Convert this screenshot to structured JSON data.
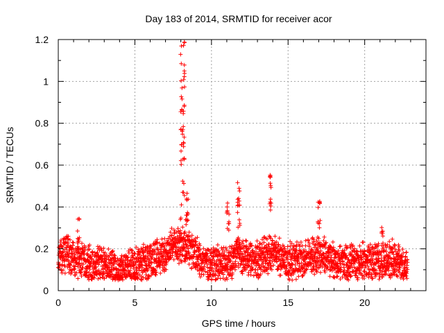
{
  "chart_data": {
    "type": "scatter",
    "title": "Day 183 of 2014, SRMTID for receiver acor",
    "xlabel": "GPS time / hours",
    "ylabel": "SRMTID / TECUs",
    "xlim": [
      0,
      24
    ],
    "ylim": [
      0,
      1.2
    ],
    "xticks": [
      0,
      5,
      10,
      15,
      20
    ],
    "yticks": [
      0,
      0.2,
      0.4,
      0.6,
      0.8,
      1,
      1.2
    ],
    "xtick_labels": [
      "0",
      "5",
      "10",
      "15",
      "20"
    ],
    "ytick_labels": [
      "0",
      "0.2",
      "0.4",
      "0.6",
      "0.8",
      "1",
      "1.2"
    ],
    "grid": true,
    "marker": "plus",
    "series_color": "#ff0000",
    "series": [
      {
        "name": "SRMTID",
        "x_range": [
          0,
          22.8
        ],
        "sample_every_hours": 0.00833,
        "baseline_profile": [
          [
            0.0,
            0.15
          ],
          [
            0.5,
            0.18
          ],
          [
            1.0,
            0.16
          ],
          [
            2.0,
            0.13
          ],
          [
            3.0,
            0.12
          ],
          [
            4.0,
            0.1
          ],
          [
            5.0,
            0.12
          ],
          [
            6.0,
            0.15
          ],
          [
            7.0,
            0.18
          ],
          [
            7.8,
            0.22
          ],
          [
            8.5,
            0.2
          ],
          [
            9.0,
            0.16
          ],
          [
            10.0,
            0.13
          ],
          [
            11.0,
            0.13
          ],
          [
            11.8,
            0.18
          ],
          [
            12.5,
            0.14
          ],
          [
            13.0,
            0.15
          ],
          [
            14.0,
            0.18
          ],
          [
            15.0,
            0.14
          ],
          [
            16.0,
            0.15
          ],
          [
            17.0,
            0.18
          ],
          [
            18.0,
            0.14
          ],
          [
            19.0,
            0.13
          ],
          [
            20.0,
            0.14
          ],
          [
            21.0,
            0.14
          ],
          [
            22.0,
            0.15
          ],
          [
            22.8,
            0.1
          ]
        ],
        "spikes": [
          {
            "x": [
              7.95,
              8.25
            ],
            "y": [
              0.25,
              1.2
            ]
          },
          {
            "x": [
              8.3,
              8.5
            ],
            "y": [
              0.3,
              0.48
            ]
          },
          {
            "x": [
              11.0,
              11.15
            ],
            "y": [
              0.28,
              0.42
            ]
          },
          {
            "x": [
              11.7,
              11.85
            ],
            "y": [
              0.3,
              0.54
            ]
          },
          {
            "x": [
              13.8,
              13.9
            ],
            "y": [
              0.38,
              0.57
            ]
          },
          {
            "x": [
              16.95,
              17.1
            ],
            "y": [
              0.3,
              0.43
            ]
          },
          {
            "x": [
              1.25,
              1.4
            ],
            "y": [
              0.22,
              0.35
            ]
          },
          {
            "x": [
              21.1,
              21.2
            ],
            "y": [
              0.26,
              0.31
            ]
          }
        ]
      }
    ]
  }
}
